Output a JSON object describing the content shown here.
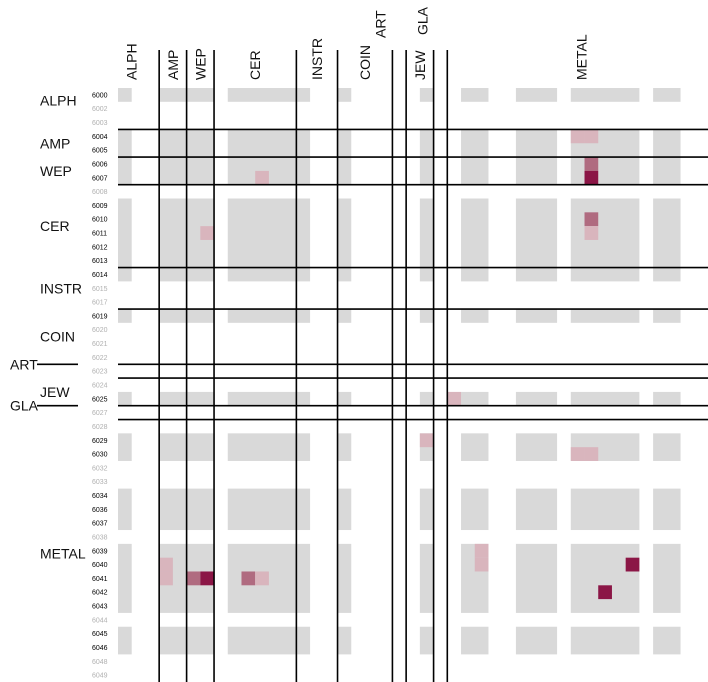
{
  "chart_data": {
    "type": "heatmap",
    "title": "",
    "row_codes": [
      "6000",
      "6002",
      "6003",
      "6004",
      "6005",
      "6006",
      "6007",
      "6008",
      "6009",
      "6010",
      "6011",
      "6012",
      "6013",
      "6014",
      "6015",
      "6017",
      "6019",
      "6020",
      "6021",
      "6022",
      "6023",
      "6024",
      "6025",
      "6027",
      "6028",
      "6029",
      "6030",
      "6032",
      "6033",
      "6034",
      "6036",
      "6037",
      "6038",
      "6039",
      "6040",
      "6041",
      "6042",
      "6043",
      "6044",
      "6045",
      "6046",
      "6048",
      "6049"
    ],
    "inactive_rows": [
      "6002",
      "6003",
      "6008",
      "6015",
      "6017",
      "6020",
      "6021",
      "6022",
      "6023",
      "6024",
      "6027",
      "6028",
      "6032",
      "6033",
      "6038",
      "6044",
      "6048",
      "6049"
    ],
    "row_groups": [
      {
        "name": "ALPH",
        "from": "6000",
        "to": "6003"
      },
      {
        "name": "AMP",
        "from": "6004",
        "to": "6005"
      },
      {
        "name": "WEP",
        "from": "6006",
        "to": "6007"
      },
      {
        "name": "CER",
        "from": "6008",
        "to": "6013"
      },
      {
        "name": "INSTR",
        "from": "6014",
        "to": "6017"
      },
      {
        "name": "COIN",
        "from": "6019",
        "to": "6022"
      },
      {
        "name": "ART",
        "from": "6023",
        "to": "6023"
      },
      {
        "name": "JEW",
        "from": "6024",
        "to": "6025"
      },
      {
        "name": "GLA",
        "from": "6027",
        "to": "6027"
      },
      {
        "name": "METAL",
        "from": "6028",
        "to": "6049"
      }
    ],
    "column_groups": [
      {
        "name": "ALPH",
        "from": "6000",
        "to": "6003"
      },
      {
        "name": "AMP",
        "from": "6004",
        "to": "6005"
      },
      {
        "name": "WEP",
        "from": "6006",
        "to": "6007"
      },
      {
        "name": "CER",
        "from": "6008",
        "to": "6013"
      },
      {
        "name": "INSTR",
        "from": "6014",
        "to": "6017"
      },
      {
        "name": "COIN",
        "from": "6019",
        "to": "6022"
      },
      {
        "name": "ART",
        "from": "6023",
        "to": "6023"
      },
      {
        "name": "JEW",
        "from": "6024",
        "to": "6025"
      },
      {
        "name": "GLA",
        "from": "6027",
        "to": "6027"
      },
      {
        "name": "METAL",
        "from": "6028",
        "to": "6049"
      }
    ],
    "cells": [
      {
        "row": "6004",
        "col": "6039",
        "value": 1
      },
      {
        "row": "6004",
        "col": "6040",
        "value": 1
      },
      {
        "row": "6006",
        "col": "6040",
        "value": 2
      },
      {
        "row": "6007",
        "col": "6011",
        "value": 1
      },
      {
        "row": "6007",
        "col": "6040",
        "value": 4
      },
      {
        "row": "6010",
        "col": "6040",
        "value": 2
      },
      {
        "row": "6011",
        "col": "6007",
        "value": 1
      },
      {
        "row": "6011",
        "col": "6040",
        "value": 1
      },
      {
        "row": "6025",
        "col": "6028",
        "value": 1
      },
      {
        "row": "6029",
        "col": "6025",
        "value": 1
      },
      {
        "row": "6030",
        "col": "6039",
        "value": 1
      },
      {
        "row": "6030",
        "col": "6040",
        "value": 1
      },
      {
        "row": "6039",
        "col": "6030",
        "value": 1
      },
      {
        "row": "6040",
        "col": "6030",
        "value": 1
      },
      {
        "row": "6040",
        "col": "6043",
        "value": 4
      },
      {
        "row": "6040",
        "col": "6004",
        "value": 1
      },
      {
        "row": "6041",
        "col": "6004",
        "value": 1
      },
      {
        "row": "6041",
        "col": "6006",
        "value": 2
      },
      {
        "row": "6041",
        "col": "6007",
        "value": 4
      },
      {
        "row": "6041",
        "col": "6010",
        "value": 2
      },
      {
        "row": "6041",
        "col": "6011",
        "value": 1
      },
      {
        "row": "6042",
        "col": "6041",
        "value": 4
      }
    ],
    "colors": {
      "background": "#d9d9d9",
      "level1": "#d9b5bd",
      "level2": "#b06b80",
      "level4": "#8b1646",
      "line": "#000000",
      "inactive_label": "#b0b0b0",
      "active_label": "#000000"
    },
    "grid": true
  }
}
